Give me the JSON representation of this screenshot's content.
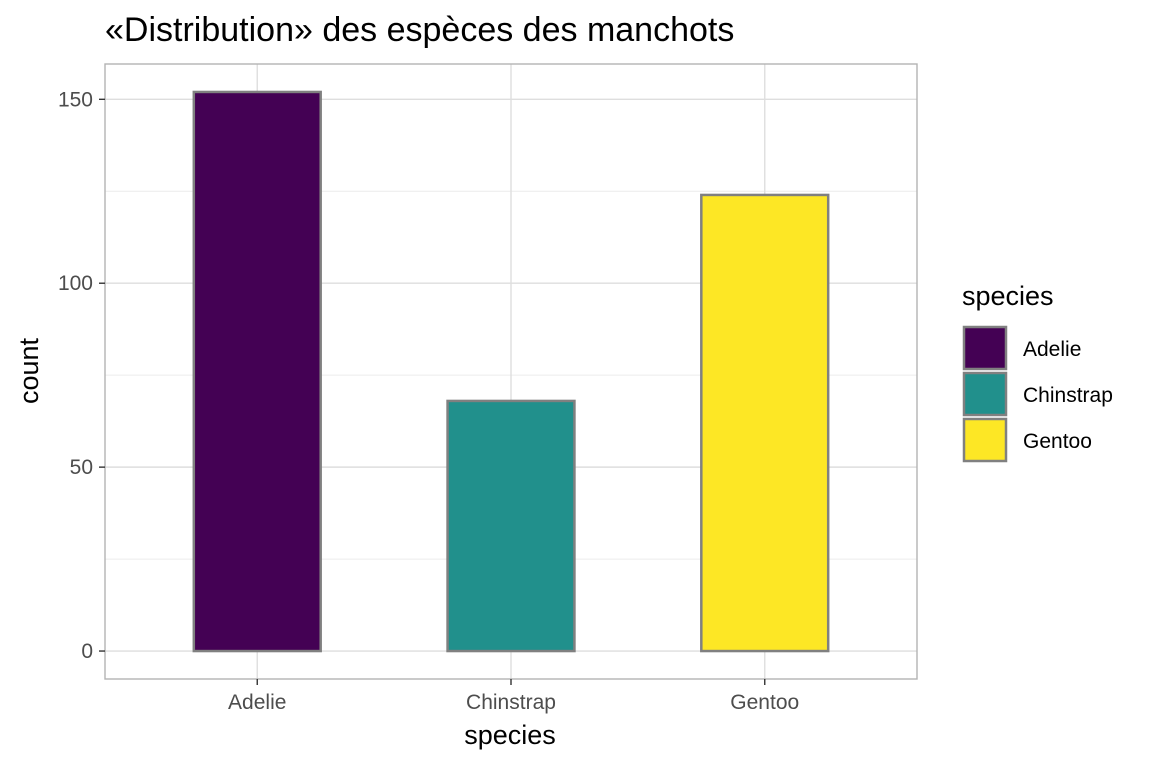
{
  "chart_data": {
    "type": "bar",
    "title": "«Distribution» des espèces des manchots",
    "xlabel": "species",
    "ylabel": "count",
    "categories": [
      "Adelie",
      "Chinstrap",
      "Gentoo"
    ],
    "values": [
      152,
      68,
      124
    ],
    "colors": [
      "#440154",
      "#21908C",
      "#FDE725"
    ],
    "bar_outline_color": "#808080",
    "ylim": [
      -7.6,
      159.6
    ],
    "y_ticks": [
      0,
      50,
      100,
      150
    ],
    "y_minor_ticks": [
      25,
      75,
      125
    ],
    "grid": true,
    "legend": {
      "title": "species",
      "position": "right",
      "entries": [
        "Adelie",
        "Chinstrap",
        "Gentoo"
      ]
    }
  }
}
